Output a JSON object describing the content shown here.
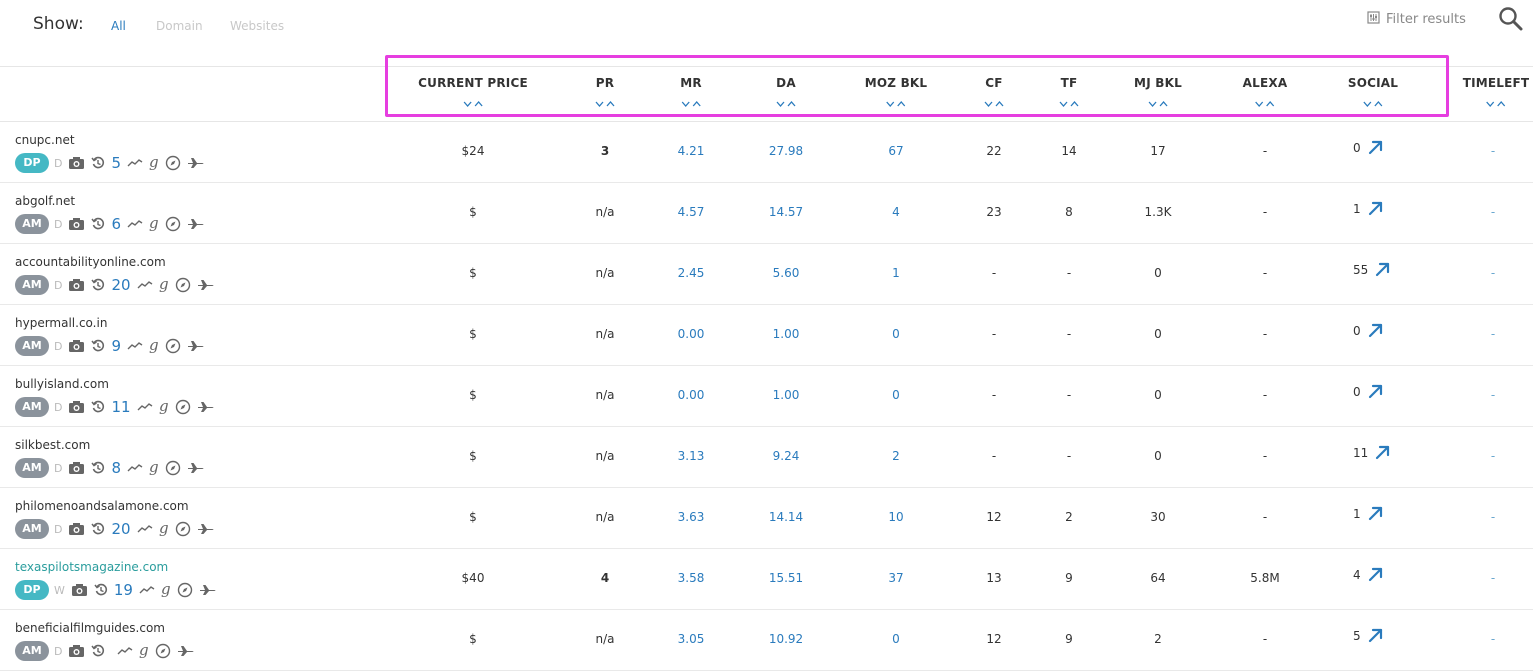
{
  "toolbar": {
    "show_label": "Show:",
    "tabs": [
      {
        "label": "All",
        "active": true
      },
      {
        "label": "Domain",
        "active": false
      },
      {
        "label": "Websites",
        "active": false
      }
    ],
    "filter_label": "Filter results",
    "search_icon": "search-icon"
  },
  "columns": [
    {
      "key": "price",
      "label": "CURRENT PRICE"
    },
    {
      "key": "pr",
      "label": "PR"
    },
    {
      "key": "mr",
      "label": "MR"
    },
    {
      "key": "da",
      "label": "DA"
    },
    {
      "key": "moz",
      "label": "MOZ BKL"
    },
    {
      "key": "cf",
      "label": "CF"
    },
    {
      "key": "tf",
      "label": "TF"
    },
    {
      "key": "mj",
      "label": "MJ BKL"
    },
    {
      "key": "alexa",
      "label": "ALEXA"
    },
    {
      "key": "social",
      "label": "SOCIAL"
    },
    {
      "key": "timeleft",
      "label": "TIMELEFT"
    }
  ],
  "rows": [
    {
      "domain": "cnupc.net",
      "badge": "DP",
      "type": "D",
      "count": "5",
      "price": "$24",
      "pr": "3",
      "mr": "4.21",
      "da": "27.98",
      "moz": "67",
      "cf": "22",
      "tf": "14",
      "mj": "17",
      "alexa": "-",
      "social": "0",
      "timeleft": "-"
    },
    {
      "domain": "abgolf.net",
      "badge": "AM",
      "type": "D",
      "count": "6",
      "price": "$",
      "pr": "n/a",
      "mr": "4.57",
      "da": "14.57",
      "moz": "4",
      "cf": "23",
      "tf": "8",
      "mj": "1.3K",
      "alexa": "-",
      "social": "1",
      "timeleft": "-"
    },
    {
      "domain": "accountabilityonline.com",
      "badge": "AM",
      "type": "D",
      "count": "20",
      "price": "$",
      "pr": "n/a",
      "mr": "2.45",
      "da": "5.60",
      "moz": "1",
      "cf": "-",
      "tf": "-",
      "mj": "0",
      "alexa": "-",
      "social": "55",
      "timeleft": "-"
    },
    {
      "domain": "hypermall.co.in",
      "badge": "AM",
      "type": "D",
      "count": "9",
      "price": "$",
      "pr": "n/a",
      "mr": "0.00",
      "da": "1.00",
      "moz": "0",
      "cf": "-",
      "tf": "-",
      "mj": "0",
      "alexa": "-",
      "social": "0",
      "timeleft": "-"
    },
    {
      "domain": "bullyisland.com",
      "badge": "AM",
      "type": "D",
      "count": "11",
      "price": "$",
      "pr": "n/a",
      "mr": "0.00",
      "da": "1.00",
      "moz": "0",
      "cf": "-",
      "tf": "-",
      "mj": "0",
      "alexa": "-",
      "social": "0",
      "timeleft": "-"
    },
    {
      "domain": "silkbest.com",
      "badge": "AM",
      "type": "D",
      "count": "8",
      "price": "$",
      "pr": "n/a",
      "mr": "3.13",
      "da": "9.24",
      "moz": "2",
      "cf": "-",
      "tf": "-",
      "mj": "0",
      "alexa": "-",
      "social": "11",
      "timeleft": "-"
    },
    {
      "domain": "philomenoandsalamone.com",
      "badge": "AM",
      "type": "D",
      "count": "20",
      "price": "$",
      "pr": "n/a",
      "mr": "3.63",
      "da": "14.14",
      "moz": "10",
      "cf": "12",
      "tf": "2",
      "mj": "30",
      "alexa": "-",
      "social": "1",
      "timeleft": "-"
    },
    {
      "domain": "texaspilotsmagazine.com",
      "badge": "DP",
      "type": "W",
      "count": "19",
      "price": "$40",
      "pr": "4",
      "mr": "3.58",
      "da": "15.51",
      "moz": "37",
      "cf": "13",
      "tf": "9",
      "mj": "64",
      "alexa": "5.8M",
      "social": "4",
      "timeleft": "-",
      "link": true
    },
    {
      "domain": "beneficialfilmguides.com",
      "badge": "AM",
      "type": "D",
      "count": "",
      "price": "$",
      "pr": "n/a",
      "mr": "3.05",
      "da": "10.92",
      "moz": "0",
      "cf": "12",
      "tf": "9",
      "mj": "2",
      "alexa": "-",
      "social": "5",
      "timeleft": "-"
    }
  ],
  "colors": {
    "accent": "#2a7bbd",
    "dp_badge": "#45b8c4",
    "am_badge": "#8b939c",
    "highlight": "#e63ee0"
  }
}
